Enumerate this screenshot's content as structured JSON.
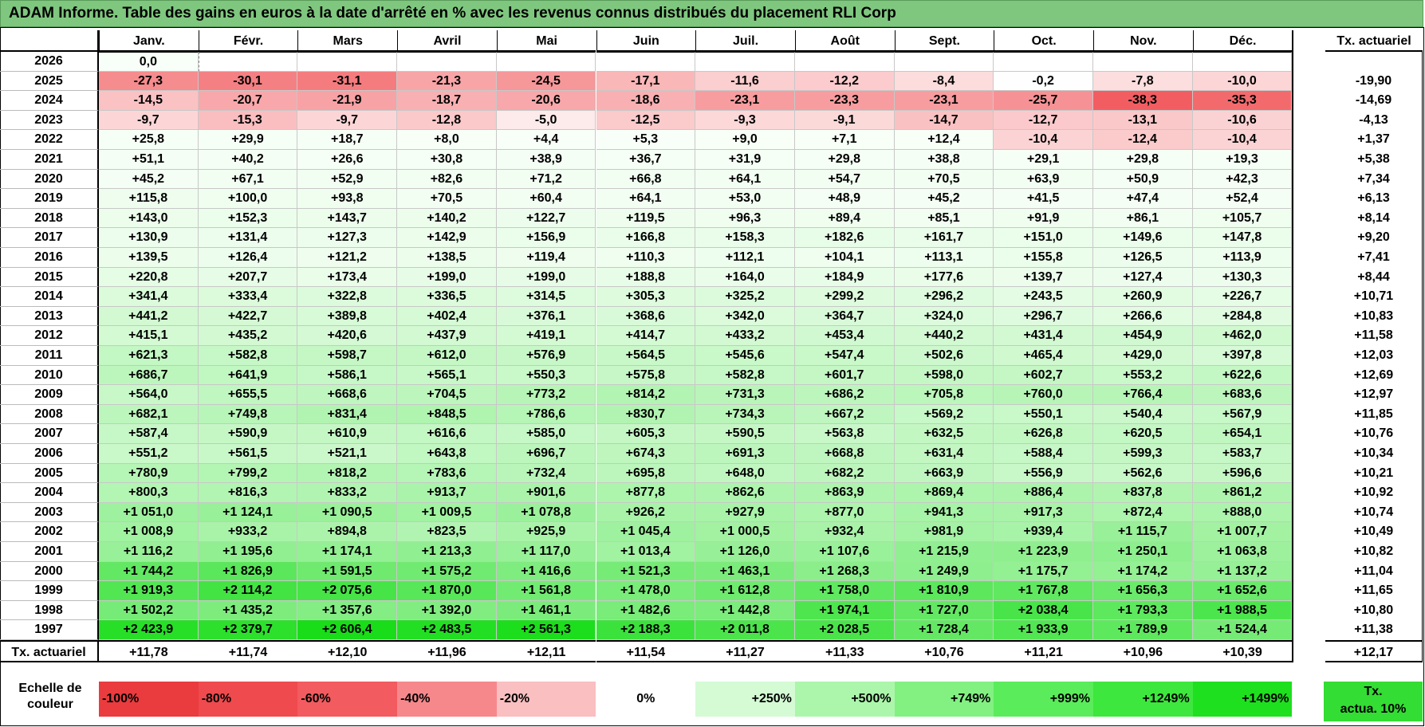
{
  "title": "ADAM Informe. Table des gains en euros à la date d'arrêté en % avec les revenus connus distribués du placement RLI Corp",
  "months": [
    "Janv.",
    "Févr.",
    "Mars",
    "Avril",
    "Mai",
    "Juin",
    "Juil.",
    "Août",
    "Sept.",
    "Oct.",
    "Nov.",
    "Déc."
  ],
  "rate_header": "Tx. actuariel",
  "rows": [
    {
      "year": "2026",
      "values": [
        "0,0",
        "",
        "",
        "",
        "",
        "",
        "",
        "",
        "",
        "",
        "",
        ""
      ],
      "rate": ""
    },
    {
      "year": "2025",
      "values": [
        "-27,3",
        "-30,1",
        "-31,1",
        "-21,3",
        "-24,5",
        "-17,1",
        "-11,6",
        "-12,2",
        "-8,4",
        "-0,2",
        "-7,8",
        "-10,0"
      ],
      "rate": "-19,90"
    },
    {
      "year": "2024",
      "values": [
        "-14,5",
        "-20,7",
        "-21,9",
        "-18,7",
        "-20,6",
        "-18,6",
        "-23,1",
        "-23,3",
        "-23,1",
        "-25,7",
        "-38,3",
        "-35,3"
      ],
      "rate": "-14,69"
    },
    {
      "year": "2023",
      "values": [
        "-9,7",
        "-15,3",
        "-9,7",
        "-12,8",
        "-5,0",
        "-12,5",
        "-9,3",
        "-9,1",
        "-14,7",
        "-12,7",
        "-13,1",
        "-10,6"
      ],
      "rate": "-4,13"
    },
    {
      "year": "2022",
      "values": [
        "+25,8",
        "+29,9",
        "+18,7",
        "+8,0",
        "+4,4",
        "+5,3",
        "+9,0",
        "+7,1",
        "+12,4",
        "-10,4",
        "-12,4",
        "-10,4"
      ],
      "rate": "+1,37"
    },
    {
      "year": "2021",
      "values": [
        "+51,1",
        "+40,2",
        "+26,6",
        "+30,8",
        "+38,9",
        "+36,7",
        "+31,9",
        "+29,8",
        "+38,8",
        "+29,1",
        "+29,8",
        "+19,3"
      ],
      "rate": "+5,38"
    },
    {
      "year": "2020",
      "values": [
        "+45,2",
        "+67,1",
        "+52,9",
        "+82,6",
        "+71,2",
        "+66,8",
        "+64,1",
        "+54,7",
        "+70,5",
        "+63,9",
        "+50,9",
        "+42,3"
      ],
      "rate": "+7,34"
    },
    {
      "year": "2019",
      "values": [
        "+115,8",
        "+100,0",
        "+93,8",
        "+70,5",
        "+60,4",
        "+64,1",
        "+53,0",
        "+48,9",
        "+45,2",
        "+41,5",
        "+47,4",
        "+52,4"
      ],
      "rate": "+6,13"
    },
    {
      "year": "2018",
      "values": [
        "+143,0",
        "+152,3",
        "+143,7",
        "+140,2",
        "+122,7",
        "+119,5",
        "+96,3",
        "+89,4",
        "+85,1",
        "+91,9",
        "+86,1",
        "+105,7"
      ],
      "rate": "+8,14"
    },
    {
      "year": "2017",
      "values": [
        "+130,9",
        "+131,4",
        "+127,3",
        "+142,9",
        "+156,9",
        "+166,8",
        "+158,3",
        "+182,6",
        "+161,7",
        "+151,0",
        "+149,6",
        "+147,8"
      ],
      "rate": "+9,20"
    },
    {
      "year": "2016",
      "values": [
        "+139,5",
        "+126,4",
        "+121,2",
        "+138,5",
        "+119,4",
        "+110,3",
        "+112,1",
        "+104,1",
        "+113,1",
        "+155,8",
        "+126,5",
        "+113,9"
      ],
      "rate": "+7,41"
    },
    {
      "year": "2015",
      "values": [
        "+220,8",
        "+207,7",
        "+173,4",
        "+199,0",
        "+199,0",
        "+188,8",
        "+164,0",
        "+184,9",
        "+177,6",
        "+139,7",
        "+127,4",
        "+130,3"
      ],
      "rate": "+8,44"
    },
    {
      "year": "2014",
      "values": [
        "+341,4",
        "+333,4",
        "+322,8",
        "+336,5",
        "+314,5",
        "+305,3",
        "+325,2",
        "+299,2",
        "+296,2",
        "+243,5",
        "+260,9",
        "+226,7"
      ],
      "rate": "+10,71"
    },
    {
      "year": "2013",
      "values": [
        "+441,2",
        "+422,7",
        "+389,8",
        "+402,4",
        "+376,1",
        "+368,6",
        "+342,0",
        "+364,7",
        "+324,0",
        "+296,7",
        "+266,6",
        "+284,8"
      ],
      "rate": "+10,83"
    },
    {
      "year": "2012",
      "values": [
        "+415,1",
        "+435,2",
        "+420,6",
        "+437,9",
        "+419,1",
        "+414,7",
        "+433,2",
        "+453,4",
        "+440,2",
        "+431,4",
        "+454,9",
        "+462,0"
      ],
      "rate": "+11,58"
    },
    {
      "year": "2011",
      "values": [
        "+621,3",
        "+582,8",
        "+598,7",
        "+612,0",
        "+576,9",
        "+564,5",
        "+545,6",
        "+547,4",
        "+502,6",
        "+465,4",
        "+429,0",
        "+397,8"
      ],
      "rate": "+12,03"
    },
    {
      "year": "2010",
      "values": [
        "+686,7",
        "+641,9",
        "+586,1",
        "+565,1",
        "+550,3",
        "+575,8",
        "+582,8",
        "+601,7",
        "+598,0",
        "+602,7",
        "+553,2",
        "+622,6"
      ],
      "rate": "+12,69"
    },
    {
      "year": "2009",
      "values": [
        "+564,0",
        "+655,5",
        "+668,6",
        "+704,5",
        "+773,2",
        "+814,2",
        "+731,3",
        "+686,2",
        "+705,8",
        "+760,0",
        "+766,4",
        "+683,6"
      ],
      "rate": "+12,97"
    },
    {
      "year": "2008",
      "values": [
        "+682,1",
        "+749,8",
        "+831,4",
        "+848,5",
        "+786,6",
        "+830,7",
        "+734,3",
        "+667,2",
        "+569,2",
        "+550,1",
        "+540,4",
        "+567,9"
      ],
      "rate": "+11,85"
    },
    {
      "year": "2007",
      "values": [
        "+587,4",
        "+590,9",
        "+610,9",
        "+616,6",
        "+585,0",
        "+605,3",
        "+590,5",
        "+563,8",
        "+632,5",
        "+626,8",
        "+620,5",
        "+654,1"
      ],
      "rate": "+10,76"
    },
    {
      "year": "2006",
      "values": [
        "+551,2",
        "+561,5",
        "+521,1",
        "+643,8",
        "+696,7",
        "+674,3",
        "+691,3",
        "+668,8",
        "+631,4",
        "+588,4",
        "+599,3",
        "+583,7"
      ],
      "rate": "+10,34"
    },
    {
      "year": "2005",
      "values": [
        "+780,9",
        "+799,2",
        "+818,2",
        "+783,6",
        "+732,4",
        "+695,8",
        "+648,0",
        "+682,2",
        "+663,9",
        "+556,9",
        "+562,6",
        "+596,6"
      ],
      "rate": "+10,21"
    },
    {
      "year": "2004",
      "values": [
        "+800,3",
        "+816,3",
        "+833,2",
        "+913,7",
        "+901,6",
        "+877,8",
        "+862,6",
        "+863,9",
        "+869,4",
        "+886,4",
        "+837,8",
        "+861,2"
      ],
      "rate": "+10,92"
    },
    {
      "year": "2003",
      "values": [
        "+1 051,0",
        "+1 124,1",
        "+1 090,5",
        "+1 009,5",
        "+1 078,8",
        "+926,2",
        "+927,9",
        "+877,0",
        "+941,3",
        "+917,3",
        "+872,4",
        "+888,0"
      ],
      "rate": "+10,74"
    },
    {
      "year": "2002",
      "values": [
        "+1 008,9",
        "+933,2",
        "+894,8",
        "+823,5",
        "+925,9",
        "+1 045,4",
        "+1 000,5",
        "+932,4",
        "+981,9",
        "+939,4",
        "+1 115,7",
        "+1 007,7"
      ],
      "rate": "+10,49"
    },
    {
      "year": "2001",
      "values": [
        "+1 116,2",
        "+1 195,6",
        "+1 174,1",
        "+1 213,3",
        "+1 117,0",
        "+1 013,4",
        "+1 126,0",
        "+1 107,6",
        "+1 215,9",
        "+1 223,9",
        "+1 250,1",
        "+1 063,8"
      ],
      "rate": "+10,82"
    },
    {
      "year": "2000",
      "values": [
        "+1 744,2",
        "+1 826,9",
        "+1 591,5",
        "+1 575,2",
        "+1 416,6",
        "+1 521,3",
        "+1 463,1",
        "+1 268,3",
        "+1 249,9",
        "+1 175,7",
        "+1 174,2",
        "+1 137,2"
      ],
      "rate": "+11,04"
    },
    {
      "year": "1999",
      "values": [
        "+1 919,3",
        "+2 114,2",
        "+2 075,6",
        "+1 870,0",
        "+1 561,8",
        "+1 478,0",
        "+1 612,8",
        "+1 758,0",
        "+1 810,9",
        "+1 767,8",
        "+1 656,3",
        "+1 652,6"
      ],
      "rate": "+11,65"
    },
    {
      "year": "1998",
      "values": [
        "+1 502,2",
        "+1 435,2",
        "+1 357,6",
        "+1 392,0",
        "+1 461,1",
        "+1 482,6",
        "+1 442,8",
        "+1 974,1",
        "+1 727,0",
        "+2 038,4",
        "+1 793,3",
        "+1 988,5"
      ],
      "rate": "+10,80"
    },
    {
      "year": "1997",
      "values": [
        "+2 423,9",
        "+2 379,7",
        "+2 606,4",
        "+2 483,5",
        "+2 561,3",
        "+2 188,3",
        "+2 011,8",
        "+2 028,5",
        "+1 728,4",
        "+1 933,9",
        "+1 789,9",
        "+1 524,4"
      ],
      "rate": "+11,38"
    }
  ],
  "footer": {
    "label": "Tx. actuariel",
    "values": [
      "+11,78",
      "+11,74",
      "+12,10",
      "+11,96",
      "+12,11",
      "+11,54",
      "+11,27",
      "+11,33",
      "+10,76",
      "+11,21",
      "+10,96",
      "+10,39"
    ],
    "rate": "+12,17"
  },
  "legend": {
    "label_line1": "Echelle de",
    "label_line2": "couleur",
    "items": [
      {
        "text": "-100%",
        "color": "#ea3b3f"
      },
      {
        "text": "-80%",
        "color": "#ef4a4e"
      },
      {
        "text": "-60%",
        "color": "#f25b5f"
      },
      {
        "text": "-40%",
        "color": "#f6888c"
      },
      {
        "text": "-20%",
        "color": "#f9bfc1"
      },
      {
        "text": "0%",
        "color": "#ffffff"
      },
      {
        "text": "+250%",
        "color": "#d5fbd5"
      },
      {
        "text": "+500%",
        "color": "#acf6ac"
      },
      {
        "text": "+749%",
        "color": "#82f182"
      },
      {
        "text": "+999%",
        "color": "#5aec5a"
      },
      {
        "text": "+1249%",
        "color": "#3de73d"
      },
      {
        "text": "+1499%",
        "color": "#1ee01e"
      }
    ],
    "rate_line1": "Tx.",
    "rate_line2": "actua. 10%",
    "rate_color": "#33dd33"
  }
}
